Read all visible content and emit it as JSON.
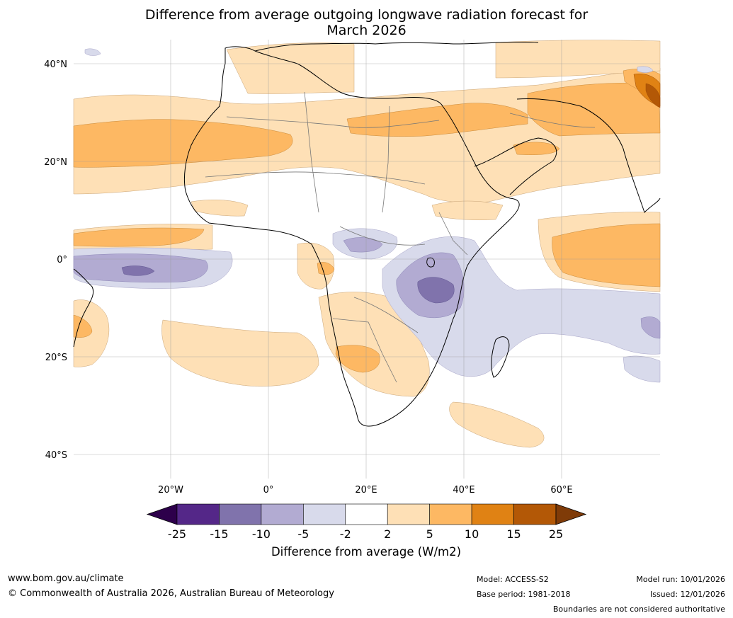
{
  "title_line1": "Difference from average outgoing longwave radiation forecast for",
  "title_line2": "March 2026",
  "lat_labels": [
    "40°N",
    "20°N",
    "0°",
    "20°S",
    "40°S"
  ],
  "lon_labels": [
    "20°W",
    "0°",
    "20°E",
    "40°E",
    "60°E"
  ],
  "colorbar": {
    "title": "Difference from average (W/m2)",
    "ticks": [
      "-25",
      "-15",
      "-10",
      "-5",
      "-2",
      "2",
      "5",
      "10",
      "15",
      "25"
    ],
    "colors": [
      "#2d004b",
      "#542788",
      "#8073ac",
      "#b2abd2",
      "#d8daeb",
      "#ffffff",
      "#fee0b6",
      "#fdb863",
      "#e08214",
      "#b35806",
      "#7f3b08"
    ]
  },
  "footer": {
    "website": "www.bom.gov.au/climate",
    "copyright": "© Commonwealth of Australia 2026, Australian Bureau of Meteorology",
    "model": "Model: ACCESS-S2",
    "base_period": "Base period: 1981-2018",
    "model_run": "Model run: 10/01/2026",
    "issued": "Issued: 12/01/2026",
    "disclaimer": "Boundaries are not considered authoritative"
  }
}
